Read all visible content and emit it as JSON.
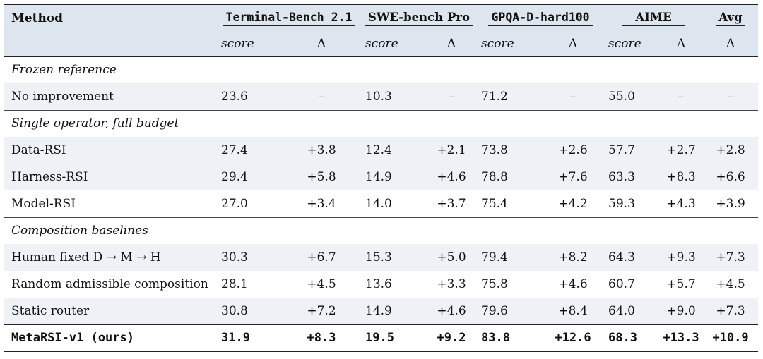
{
  "header": {
    "method": "Method",
    "groups": [
      "Terminal-Bench 2.1",
      "SWE-bench Pro",
      "GPQA-D-hard100",
      "AIME",
      "Avg"
    ],
    "score": "score",
    "delta": "Δ"
  },
  "sections": {
    "frozen": "Frozen reference",
    "single": "Single operator, full budget",
    "composition": "Composition baselines"
  },
  "rows": {
    "no_improvement": {
      "name": "No improvement",
      "v": [
        "23.6",
        "–",
        "10.3",
        "–",
        "71.2",
        "–",
        "55.0",
        "–",
        "–"
      ]
    },
    "data_rsi": {
      "name": "Data-RSI",
      "v": [
        "27.4",
        "+3.8",
        "12.4",
        "+2.1",
        "73.8",
        "+2.6",
        "57.7",
        "+2.7",
        "+2.8"
      ]
    },
    "harness_rsi": {
      "name": "Harness-RSI",
      "v": [
        "29.4",
        "+5.8",
        "14.9",
        "+4.6",
        "78.8",
        "+7.6",
        "63.3",
        "+8.3",
        "+6.6"
      ]
    },
    "model_rsi": {
      "name": "Model-RSI",
      "v": [
        "27.0",
        "+3.4",
        "14.0",
        "+3.7",
        "75.4",
        "+4.2",
        "59.3",
        "+4.3",
        "+3.9"
      ]
    },
    "human_fixed": {
      "name": "Human fixed D → M → H",
      "v": [
        "30.3",
        "+6.7",
        "15.3",
        "+5.0",
        "79.4",
        "+8.2",
        "64.3",
        "+9.3",
        "+7.3"
      ]
    },
    "random": {
      "name": "Random admissible composition",
      "v": [
        "28.1",
        "+4.5",
        "13.6",
        "+3.3",
        "75.8",
        "+4.6",
        "60.7",
        "+5.7",
        "+4.5"
      ]
    },
    "static_router": {
      "name": "Static router",
      "v": [
        "30.8",
        "+7.2",
        "14.9",
        "+4.6",
        "79.6",
        "+8.4",
        "64.0",
        "+9.0",
        "+7.3"
      ]
    },
    "metarsi": {
      "name": "MetaRSI-v1 (ours)",
      "v": [
        "31.9",
        "+8.3",
        "19.5",
        "+9.2",
        "83.8",
        "+12.6",
        "68.3",
        "+13.3",
        "+10.9"
      ]
    }
  }
}
